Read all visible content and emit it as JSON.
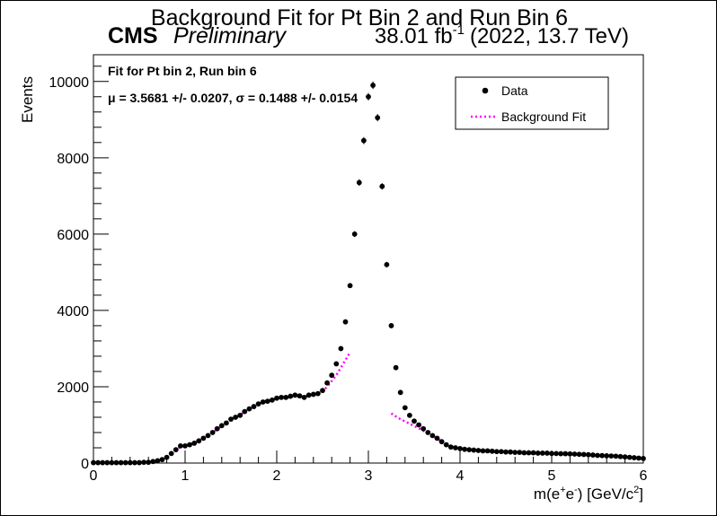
{
  "chart_data": {
    "type": "scatter",
    "title": "Background Fit for Pt Bin 2 and Run Bin 6",
    "header": {
      "experiment": "CMS",
      "status": "Preliminary",
      "lumi": "38.01 fb",
      "lumi_exp": "-1",
      "energy": "(2022, 13.7 TeV)"
    },
    "annotation": {
      "line1": "Fit for Pt bin 2, Run bin 6",
      "line2": "μ = 3.5681 +/- 0.0207, σ = 0.1488 +/- 0.0154"
    },
    "xlabel": {
      "base": "m(e",
      "sup1": "+",
      "mid": "e",
      "sup2": "-",
      "tail": ") [GeV/c",
      "sup3": "2",
      "close": "]"
    },
    "ylabel": "Events",
    "xlim": [
      0,
      6
    ],
    "ylim": [
      0,
      10700
    ],
    "x_ticks": [
      {
        "value": 0,
        "label": "0"
      },
      {
        "value": 1,
        "label": "1"
      },
      {
        "value": 2,
        "label": "2"
      },
      {
        "value": 3,
        "label": "3"
      },
      {
        "value": 4,
        "label": "4"
      },
      {
        "value": 5,
        "label": "5"
      },
      {
        "value": 6,
        "label": "6"
      }
    ],
    "y_ticks": [
      {
        "value": 0,
        "label": "0"
      },
      {
        "value": 2000,
        "label": "2000"
      },
      {
        "value": 4000,
        "label": "4000"
      },
      {
        "value": 6000,
        "label": "6000"
      },
      {
        "value": 8000,
        "label": "8000"
      },
      {
        "value": 10000,
        "label": "10000"
      }
    ],
    "legend": {
      "placement": "top-right",
      "entries": [
        {
          "label": "Data",
          "style": "marker",
          "color": "#000000"
        },
        {
          "label": "Background Fit",
          "style": "dotted-line",
          "color": "#ff00ff"
        }
      ]
    },
    "series": [
      {
        "name": "Data",
        "color": "#000000",
        "x": [
          0.0,
          0.05,
          0.1,
          0.15,
          0.2,
          0.25,
          0.3,
          0.35,
          0.4,
          0.45,
          0.5,
          0.55,
          0.6,
          0.65,
          0.7,
          0.75,
          0.8,
          0.85,
          0.9,
          0.95,
          1.0,
          1.05,
          1.1,
          1.15,
          1.2,
          1.25,
          1.3,
          1.35,
          1.4,
          1.45,
          1.5,
          1.55,
          1.6,
          1.65,
          1.7,
          1.75,
          1.8,
          1.85,
          1.9,
          1.95,
          2.0,
          2.05,
          2.1,
          2.15,
          2.2,
          2.25,
          2.3,
          2.35,
          2.4,
          2.45,
          2.5,
          2.55,
          2.6,
          2.65,
          2.7,
          2.75,
          2.8,
          2.85,
          2.9,
          2.95,
          3.0,
          3.05,
          3.1,
          3.15,
          3.2,
          3.25,
          3.3,
          3.35,
          3.4,
          3.45,
          3.5,
          3.55,
          3.6,
          3.65,
          3.7,
          3.75,
          3.8,
          3.85,
          3.9,
          3.95,
          4.0,
          4.05,
          4.1,
          4.15,
          4.2,
          4.25,
          4.3,
          4.35,
          4.4,
          4.45,
          4.5,
          4.55,
          4.6,
          4.65,
          4.7,
          4.75,
          4.8,
          4.85,
          4.9,
          4.95,
          5.0,
          5.05,
          5.1,
          5.15,
          5.2,
          5.25,
          5.3,
          5.35,
          5.4,
          5.45,
          5.5,
          5.55,
          5.6,
          5.65,
          5.7,
          5.75,
          5.8,
          5.85,
          5.9,
          5.95,
          6.0
        ],
        "y": [
          10,
          10,
          10,
          10,
          10,
          10,
          10,
          10,
          10,
          10,
          10,
          20,
          20,
          40,
          60,
          90,
          150,
          250,
          350,
          450,
          450,
          480,
          520,
          580,
          650,
          720,
          800,
          900,
          980,
          1050,
          1150,
          1200,
          1250,
          1350,
          1420,
          1480,
          1550,
          1600,
          1620,
          1650,
          1700,
          1720,
          1720,
          1750,
          1780,
          1760,
          1720,
          1780,
          1800,
          1820,
          1900,
          2100,
          2300,
          2600,
          3000,
          3700,
          4650,
          6000,
          7350,
          8450,
          9600,
          9900,
          9050,
          7250,
          5200,
          3600,
          2500,
          1850,
          1450,
          1250,
          1100,
          1000,
          900,
          800,
          720,
          650,
          560,
          480,
          420,
          400,
          380,
          360,
          350,
          340,
          330,
          320,
          320,
          310,
          300,
          300,
          290,
          290,
          280,
          280,
          270,
          270,
          270,
          260,
          260,
          260,
          250,
          250,
          245,
          245,
          240,
          235,
          230,
          225,
          220,
          210,
          200,
          195,
          190,
          185,
          180,
          170,
          160,
          150,
          140,
          130,
          120
        ]
      },
      {
        "name": "Background Fit",
        "color": "#ff00ff",
        "x": [
          0.85,
          0.9,
          0.95,
          1.0,
          1.05,
          1.1,
          1.15,
          1.2,
          1.25,
          1.3,
          1.35,
          1.4,
          1.45,
          1.5,
          1.55,
          1.6,
          1.65,
          1.7,
          1.75,
          1.8,
          1.85,
          1.9,
          1.95,
          2.0,
          2.05,
          2.1,
          2.15,
          2.2,
          2.25,
          2.3,
          2.35,
          2.4,
          2.45,
          2.5,
          2.55,
          2.6,
          2.65,
          2.7,
          2.75,
          2.8,
          3.25,
          3.3,
          3.35,
          3.4,
          3.45,
          3.5,
          3.55,
          3.6,
          3.65,
          3.7,
          3.75,
          3.8,
          3.85,
          3.9,
          3.95,
          4.0,
          4.05,
          4.1,
          4.15,
          4.2,
          4.25,
          4.3,
          4.35,
          4.4,
          4.45,
          4.5,
          4.55,
          4.6,
          4.65,
          4.7,
          4.75,
          4.8,
          4.85,
          4.9,
          4.95,
          5.0,
          5.05,
          5.1,
          5.15,
          5.2,
          5.25,
          5.3,
          5.35,
          5.4,
          5.45,
          5.5,
          5.55,
          5.6,
          5.65,
          5.7,
          5.75,
          5.8,
          5.85,
          5.9,
          5.95,
          6.0
        ],
        "y": [
          250,
          350,
          420,
          460,
          490,
          530,
          590,
          650,
          720,
          800,
          890,
          970,
          1050,
          1140,
          1200,
          1260,
          1340,
          1410,
          1480,
          1540,
          1590,
          1620,
          1650,
          1690,
          1710,
          1720,
          1740,
          1760,
          1760,
          1740,
          1770,
          1790,
          1820,
          1880,
          2000,
          2150,
          2300,
          2500,
          2700,
          2900,
          1300,
          1220,
          1150,
          1090,
          1030,
          970,
          910,
          850,
          780,
          710,
          640,
          570,
          500,
          440,
          410,
          390,
          370,
          355,
          345,
          335,
          325,
          318,
          310,
          302,
          296,
          290,
          285,
          280,
          277,
          273,
          270,
          267,
          263,
          259,
          255,
          250,
          246,
          242,
          238,
          233,
          228,
          222,
          215,
          208,
          202,
          196,
          190,
          184,
          178,
          172,
          165,
          158,
          150,
          142,
          134,
          126
        ]
      }
    ]
  }
}
